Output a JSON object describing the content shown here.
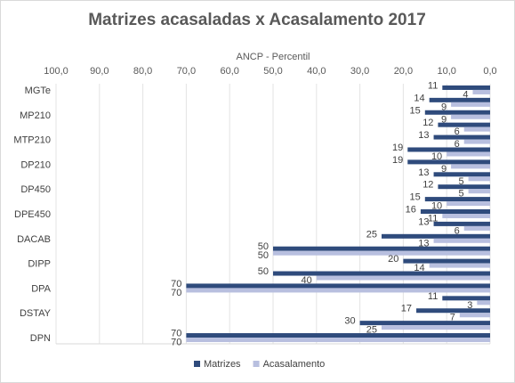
{
  "chart_data": {
    "type": "bar",
    "orientation": "horizontal",
    "title": "Matrizes acasaladas  x Acasalamento 2017",
    "xlabel": "ANCP - Percentil",
    "x_axis_position": "top",
    "x_reversed": true,
    "xlim": [
      0,
      100
    ],
    "x_ticks": [
      "100,0",
      "90,0",
      "80,0",
      "70,0",
      "60,0",
      "50,0",
      "40,0",
      "30,0",
      "20,0",
      "10,0",
      "0,0"
    ],
    "grid": true,
    "legend_position": "bottom",
    "category_labels": [
      "MGTe",
      "",
      "MP210",
      "",
      "MTP210",
      "",
      "DP210",
      "",
      "DP450",
      "",
      "DPE450",
      "",
      "DACAB",
      "",
      "DIPP",
      "",
      "DPA",
      "",
      "DSTAY",
      "",
      "DPN"
    ],
    "series": [
      {
        "name": "Matrizes",
        "color": "#2f4b7c",
        "values": [
          11,
          14,
          15,
          12,
          13,
          19,
          19,
          13,
          12,
          15,
          16,
          13,
          25,
          50,
          20,
          50,
          70,
          11,
          17,
          30,
          70
        ]
      },
      {
        "name": "Acasalamento",
        "color": "#b8bfdf",
        "values": [
          4,
          9,
          9,
          6,
          6,
          10,
          9,
          5,
          5,
          10,
          11,
          6,
          13,
          50,
          14,
          40,
          70,
          3,
          7,
          25,
          70
        ]
      }
    ]
  }
}
